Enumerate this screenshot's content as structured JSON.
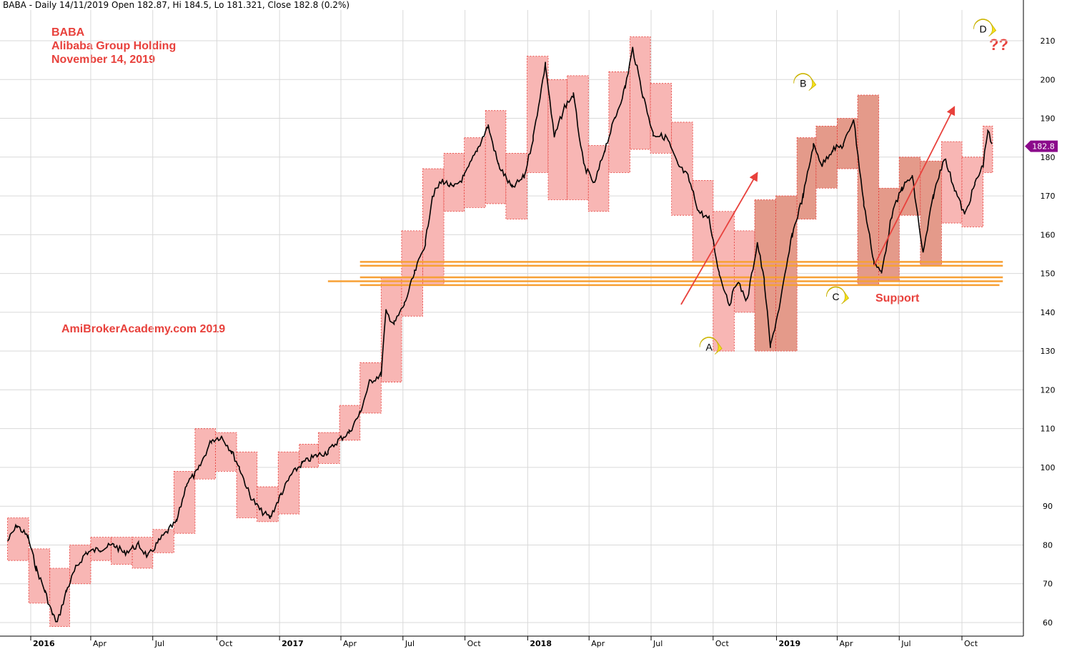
{
  "header": "BABA - Daily 14/11/2019 Open 182.87, Hi 184.5, Lo 181.321, Close 182.8 (0.2%)",
  "title_block": {
    "line1": "BABA",
    "line2": "Alibaba Group Holding",
    "line3": "November 14, 2019"
  },
  "watermark": "AmiBrokerAcademy.com   2019",
  "support_label": "Support",
  "question_label": "??",
  "colors": {
    "box_fill": "#f8b6b4",
    "box_fill_dark": "#e49a8a",
    "box_border": "#e53935",
    "support_line": "#f7a035",
    "trend_arrow": "#e8413c",
    "price_line": "#000000",
    "last_price_badge": "#8b0a8b",
    "wave_label": "#f5e11a",
    "grid": "#d9d9d9"
  },
  "chart_data": {
    "type": "line",
    "symbol": "BABA",
    "period": "Daily",
    "y_ticks": [
      60,
      70,
      80,
      90,
      100,
      110,
      120,
      130,
      140,
      150,
      160,
      170,
      180,
      190,
      200,
      210
    ],
    "ylim": [
      58,
      215
    ],
    "x_ticks": [
      {
        "label": "2016",
        "date": "2016-01-04",
        "year": true
      },
      {
        "label": "Apr",
        "date": "2016-04-01",
        "year": false
      },
      {
        "label": "Jul",
        "date": "2016-07-01",
        "year": false
      },
      {
        "label": "Oct",
        "date": "2016-10-03",
        "year": false
      },
      {
        "label": "2017",
        "date": "2017-01-03",
        "year": true
      },
      {
        "label": "Apr",
        "date": "2017-04-03",
        "year": false
      },
      {
        "label": "Jul",
        "date": "2017-07-03",
        "year": false
      },
      {
        "label": "Oct",
        "date": "2017-10-02",
        "year": false
      },
      {
        "label": "2018",
        "date": "2018-01-02",
        "year": true
      },
      {
        "label": "Apr",
        "date": "2018-04-02",
        "year": false
      },
      {
        "label": "Jul",
        "date": "2018-07-02",
        "year": false
      },
      {
        "label": "Oct",
        "date": "2018-10-01",
        "year": false
      },
      {
        "label": "2019",
        "date": "2019-01-02",
        "year": true
      },
      {
        "label": "Apr",
        "date": "2019-04-01",
        "year": false
      },
      {
        "label": "Jul",
        "date": "2019-07-01",
        "year": false
      },
      {
        "label": "Oct",
        "date": "2019-10-01",
        "year": false
      }
    ],
    "last_price": {
      "value": 182.8,
      "label": "182.8"
    },
    "price_path": [
      [
        "2015-12-01",
        81
      ],
      [
        "2015-12-15",
        85
      ],
      [
        "2015-12-31",
        82
      ],
      [
        "2016-01-12",
        74
      ],
      [
        "2016-01-25",
        68
      ],
      [
        "2016-02-05",
        62
      ],
      [
        "2016-02-12",
        60
      ],
      [
        "2016-02-25",
        68
      ],
      [
        "2016-03-10",
        74
      ],
      [
        "2016-03-25",
        78
      ],
      [
        "2016-04-15",
        79
      ],
      [
        "2016-05-05",
        80
      ],
      [
        "2016-05-20",
        78
      ],
      [
        "2016-06-10",
        80
      ],
      [
        "2016-06-24",
        77
      ],
      [
        "2016-07-10",
        81
      ],
      [
        "2016-07-25",
        84
      ],
      [
        "2016-08-05",
        86
      ],
      [
        "2016-08-20",
        96
      ],
      [
        "2016-09-05",
        99
      ],
      [
        "2016-09-25",
        107
      ],
      [
        "2016-10-10",
        108
      ],
      [
        "2016-10-25",
        104
      ],
      [
        "2016-11-05",
        100
      ],
      [
        "2016-11-20",
        93
      ],
      [
        "2016-12-05",
        89
      ],
      [
        "2016-12-20",
        87
      ],
      [
        "2017-01-05",
        93
      ],
      [
        "2017-01-20",
        98
      ],
      [
        "2017-02-05",
        101
      ],
      [
        "2017-02-25",
        103
      ],
      [
        "2017-03-15",
        104
      ],
      [
        "2017-03-30",
        107
      ],
      [
        "2017-04-15",
        109
      ],
      [
        "2017-05-01",
        114
      ],
      [
        "2017-05-15",
        122
      ],
      [
        "2017-06-01",
        124
      ],
      [
        "2017-06-08",
        140
      ],
      [
        "2017-06-20",
        137
      ],
      [
        "2017-07-05",
        142
      ],
      [
        "2017-07-20",
        150
      ],
      [
        "2017-08-05",
        158
      ],
      [
        "2017-08-15",
        170
      ],
      [
        "2017-08-30",
        174
      ],
      [
        "2017-09-15",
        172
      ],
      [
        "2017-10-01",
        175
      ],
      [
        "2017-10-20",
        182
      ],
      [
        "2017-11-05",
        188
      ],
      [
        "2017-11-20",
        178
      ],
      [
        "2017-12-10",
        172
      ],
      [
        "2017-12-28",
        175
      ],
      [
        "2018-01-10",
        185
      ],
      [
        "2018-01-28",
        204
      ],
      [
        "2018-02-10",
        185
      ],
      [
        "2018-02-25",
        193
      ],
      [
        "2018-03-10",
        196
      ],
      [
        "2018-03-25",
        178
      ],
      [
        "2018-04-10",
        173
      ],
      [
        "2018-04-25",
        182
      ],
      [
        "2018-05-10",
        190
      ],
      [
        "2018-05-25",
        198
      ],
      [
        "2018-06-05",
        208
      ],
      [
        "2018-06-20",
        196
      ],
      [
        "2018-07-05",
        186
      ],
      [
        "2018-07-25",
        185
      ],
      [
        "2018-08-10",
        178
      ],
      [
        "2018-08-25",
        175
      ],
      [
        "2018-09-10",
        166
      ],
      [
        "2018-09-25",
        164
      ],
      [
        "2018-10-10",
        150
      ],
      [
        "2018-10-25",
        142
      ],
      [
        "2018-11-05",
        148
      ],
      [
        "2018-11-20",
        143
      ],
      [
        "2018-12-05",
        158
      ],
      [
        "2018-12-15",
        148
      ],
      [
        "2018-12-24",
        131
      ],
      [
        "2019-01-08",
        143
      ],
      [
        "2019-01-25",
        160
      ],
      [
        "2019-02-10",
        170
      ],
      [
        "2019-02-25",
        183
      ],
      [
        "2019-03-10",
        178
      ],
      [
        "2019-03-25",
        182
      ],
      [
        "2019-04-10",
        183
      ],
      [
        "2019-04-25",
        190
      ],
      [
        "2019-05-10",
        168
      ],
      [
        "2019-05-25",
        153
      ],
      [
        "2019-06-05",
        150
      ],
      [
        "2019-06-20",
        165
      ],
      [
        "2019-07-05",
        172
      ],
      [
        "2019-07-20",
        175
      ],
      [
        "2019-08-05",
        155
      ],
      [
        "2019-08-20",
        170
      ],
      [
        "2019-09-05",
        180
      ],
      [
        "2019-09-20",
        172
      ],
      [
        "2019-10-05",
        165
      ],
      [
        "2019-10-20",
        173
      ],
      [
        "2019-11-01",
        178
      ],
      [
        "2019-11-08",
        187
      ],
      [
        "2019-11-14",
        182.8
      ]
    ],
    "monthly_boxes": [
      {
        "start": "2015-12-01",
        "end": "2015-12-31",
        "low": 76,
        "high": 87
      },
      {
        "start": "2016-01-01",
        "end": "2016-01-31",
        "low": 65,
        "high": 79
      },
      {
        "start": "2016-02-01",
        "end": "2016-02-29",
        "low": 59,
        "high": 74
      },
      {
        "start": "2016-03-01",
        "end": "2016-03-31",
        "low": 70,
        "high": 80
      },
      {
        "start": "2016-04-01",
        "end": "2016-04-30",
        "low": 76,
        "high": 82
      },
      {
        "start": "2016-05-01",
        "end": "2016-05-31",
        "low": 75,
        "high": 82
      },
      {
        "start": "2016-06-01",
        "end": "2016-06-30",
        "low": 74,
        "high": 82
      },
      {
        "start": "2016-07-01",
        "end": "2016-07-31",
        "low": 78,
        "high": 84
      },
      {
        "start": "2016-08-01",
        "end": "2016-08-31",
        "low": 83,
        "high": 99
      },
      {
        "start": "2016-09-01",
        "end": "2016-09-30",
        "low": 97,
        "high": 110
      },
      {
        "start": "2016-10-01",
        "end": "2016-10-31",
        "low": 99,
        "high": 109
      },
      {
        "start": "2016-11-01",
        "end": "2016-11-30",
        "low": 87,
        "high": 104
      },
      {
        "start": "2016-12-01",
        "end": "2016-12-31",
        "low": 86,
        "high": 95
      },
      {
        "start": "2017-01-01",
        "end": "2017-01-31",
        "low": 88,
        "high": 104
      },
      {
        "start": "2017-02-01",
        "end": "2017-02-28",
        "low": 100,
        "high": 106
      },
      {
        "start": "2017-03-01",
        "end": "2017-03-31",
        "low": 101,
        "high": 109
      },
      {
        "start": "2017-04-01",
        "end": "2017-04-30",
        "low": 107,
        "high": 116
      },
      {
        "start": "2017-05-01",
        "end": "2017-05-31",
        "low": 114,
        "high": 127
      },
      {
        "start": "2017-06-01",
        "end": "2017-06-30",
        "low": 122,
        "high": 149
      },
      {
        "start": "2017-07-01",
        "end": "2017-07-31",
        "low": 139,
        "high": 161
      },
      {
        "start": "2017-08-01",
        "end": "2017-08-31",
        "low": 147,
        "high": 177
      },
      {
        "start": "2017-09-01",
        "end": "2017-09-30",
        "low": 166,
        "high": 181
      },
      {
        "start": "2017-10-01",
        "end": "2017-10-31",
        "low": 167,
        "high": 185
      },
      {
        "start": "2017-11-01",
        "end": "2017-11-30",
        "low": 168,
        "high": 192
      },
      {
        "start": "2017-12-01",
        "end": "2017-12-31",
        "low": 164,
        "high": 181
      },
      {
        "start": "2018-01-01",
        "end": "2018-01-31",
        "low": 176,
        "high": 206
      },
      {
        "start": "2018-02-01",
        "end": "2018-02-28",
        "low": 169,
        "high": 200
      },
      {
        "start": "2018-03-01",
        "end": "2018-03-31",
        "low": 169,
        "high": 201
      },
      {
        "start": "2018-04-01",
        "end": "2018-04-30",
        "low": 166,
        "high": 183
      },
      {
        "start": "2018-05-01",
        "end": "2018-05-31",
        "low": 176,
        "high": 202
      },
      {
        "start": "2018-06-01",
        "end": "2018-06-30",
        "low": 182,
        "high": 211
      },
      {
        "start": "2018-07-01",
        "end": "2018-07-31",
        "low": 181,
        "high": 199
      },
      {
        "start": "2018-08-01",
        "end": "2018-08-31",
        "low": 165,
        "high": 189
      },
      {
        "start": "2018-09-01",
        "end": "2018-09-30",
        "low": 153,
        "high": 174
      },
      {
        "start": "2018-10-01",
        "end": "2018-10-31",
        "low": 130,
        "high": 166
      },
      {
        "start": "2018-11-01",
        "end": "2018-11-30",
        "low": 140,
        "high": 161
      },
      {
        "start": "2018-12-01",
        "end": "2018-12-31",
        "low": 130,
        "high": 169,
        "dark": true
      },
      {
        "start": "2019-01-01",
        "end": "2019-01-31",
        "low": 130,
        "high": 170,
        "dark": true
      },
      {
        "start": "2019-02-01",
        "end": "2019-02-28",
        "low": 164,
        "high": 185,
        "dark": true
      },
      {
        "start": "2019-03-01",
        "end": "2019-03-31",
        "low": 172,
        "high": 188,
        "dark": true
      },
      {
        "start": "2019-04-01",
        "end": "2019-04-30",
        "low": 177,
        "high": 190,
        "dark": true
      },
      {
        "start": "2019-05-01",
        "end": "2019-05-31",
        "low": 147,
        "high": 196,
        "dark": true
      },
      {
        "start": "2019-06-01",
        "end": "2019-06-30",
        "low": 148,
        "high": 172,
        "dark": true
      },
      {
        "start": "2019-07-01",
        "end": "2019-07-31",
        "low": 165,
        "high": 180,
        "dark": true
      },
      {
        "start": "2019-08-01",
        "end": "2019-08-31",
        "low": 152,
        "high": 179,
        "dark": true
      },
      {
        "start": "2019-09-01",
        "end": "2019-09-30",
        "low": 163,
        "high": 184
      },
      {
        "start": "2019-10-01",
        "end": "2019-10-31",
        "low": 162,
        "high": 180
      },
      {
        "start": "2019-11-01",
        "end": "2019-11-14",
        "low": 176,
        "high": 188
      }
    ],
    "support_lines": [
      {
        "start": "2017-05-01",
        "end": "2019-11-30",
        "value": 153
      },
      {
        "start": "2017-05-01",
        "end": "2019-11-30",
        "value": 152
      },
      {
        "start": "2017-05-01",
        "end": "2019-11-30",
        "value": 149
      },
      {
        "start": "2017-03-15",
        "end": "2019-11-30",
        "value": 148
      },
      {
        "start": "2017-05-01",
        "end": "2019-11-25",
        "value": 147
      }
    ],
    "trend_arrows": [
      {
        "from": [
          "2018-08-15",
          142
        ],
        "to": [
          "2018-12-05",
          176
        ]
      },
      {
        "from": [
          "2019-05-25",
          152
        ],
        "to": [
          "2019-09-20",
          193
        ]
      }
    ],
    "wave_labels": [
      {
        "label": "A",
        "date": "2018-09-25",
        "value": 131
      },
      {
        "label": "B",
        "date": "2019-02-10",
        "value": 199
      },
      {
        "label": "C",
        "date": "2019-03-30",
        "value": 144
      },
      {
        "label": "D",
        "date": "2019-11-01",
        "value": 213
      }
    ]
  }
}
